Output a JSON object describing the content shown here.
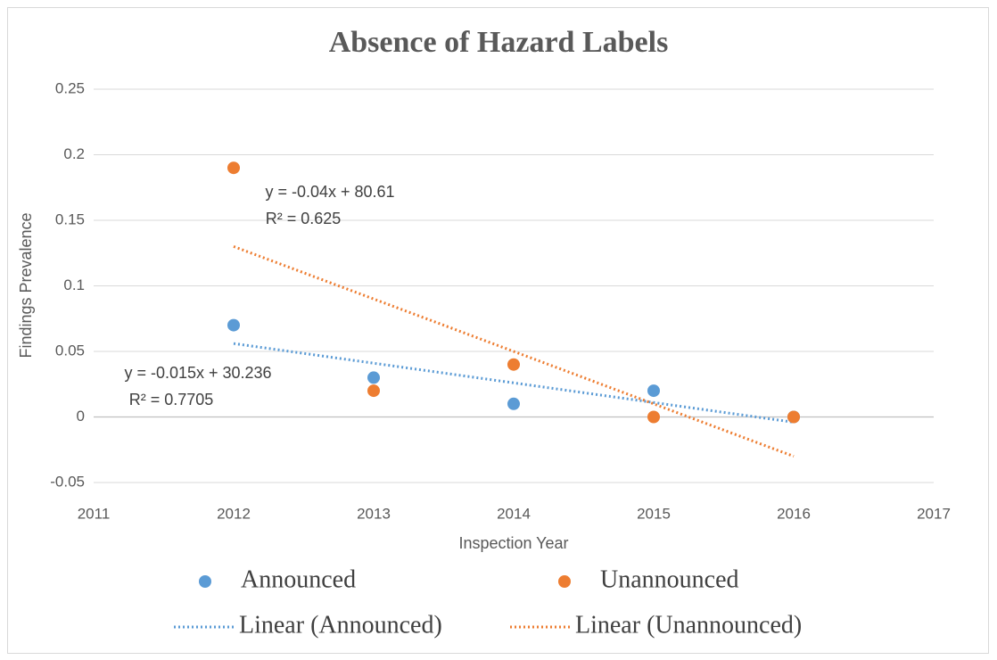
{
  "chart_data": {
    "type": "scatter",
    "title": "Absence of Hazard Labels",
    "x_label": "Inspection Year",
    "y_label": "Findings Prevalence",
    "xlim": [
      2011,
      2017
    ],
    "xticks": [
      2011,
      2012,
      2013,
      2014,
      2015,
      2016,
      2017
    ],
    "ylim": [
      -0.05,
      0.25
    ],
    "yticks": [
      -0.05,
      0,
      0.05,
      0.1,
      0.15,
      0.2,
      0.25
    ],
    "grid": true,
    "legend": "bottom",
    "series": [
      {
        "name": "Announced",
        "color": "#5b9bd5",
        "x": [
          2012,
          2013,
          2014,
          2015,
          2016
        ],
        "values": [
          0.07,
          0.03,
          0.01,
          0.02,
          0
        ]
      },
      {
        "name": "Unannounced",
        "color": "#ed7d31",
        "x": [
          2012,
          2013,
          2014,
          2015,
          2016
        ],
        "values": [
          0.19,
          0.02,
          0.04,
          0,
          0
        ]
      },
      {
        "name": "Linear (Announced)",
        "color": "#5b9bd5",
        "trendline": true,
        "x": [
          2012,
          2016
        ],
        "values": [
          0.056,
          -0.004
        ]
      },
      {
        "name": "Linear (Unannounced)",
        "color": "#ed7d31",
        "trendline": true,
        "x": [
          2012,
          2016
        ],
        "values": [
          0.13,
          -0.03
        ]
      }
    ],
    "annotations": [
      [
        "y = -0.04x + 80.61",
        "R² = 0.625"
      ],
      [
        "y = -0.015x + 30.236",
        "R² = 0.7705"
      ]
    ]
  }
}
